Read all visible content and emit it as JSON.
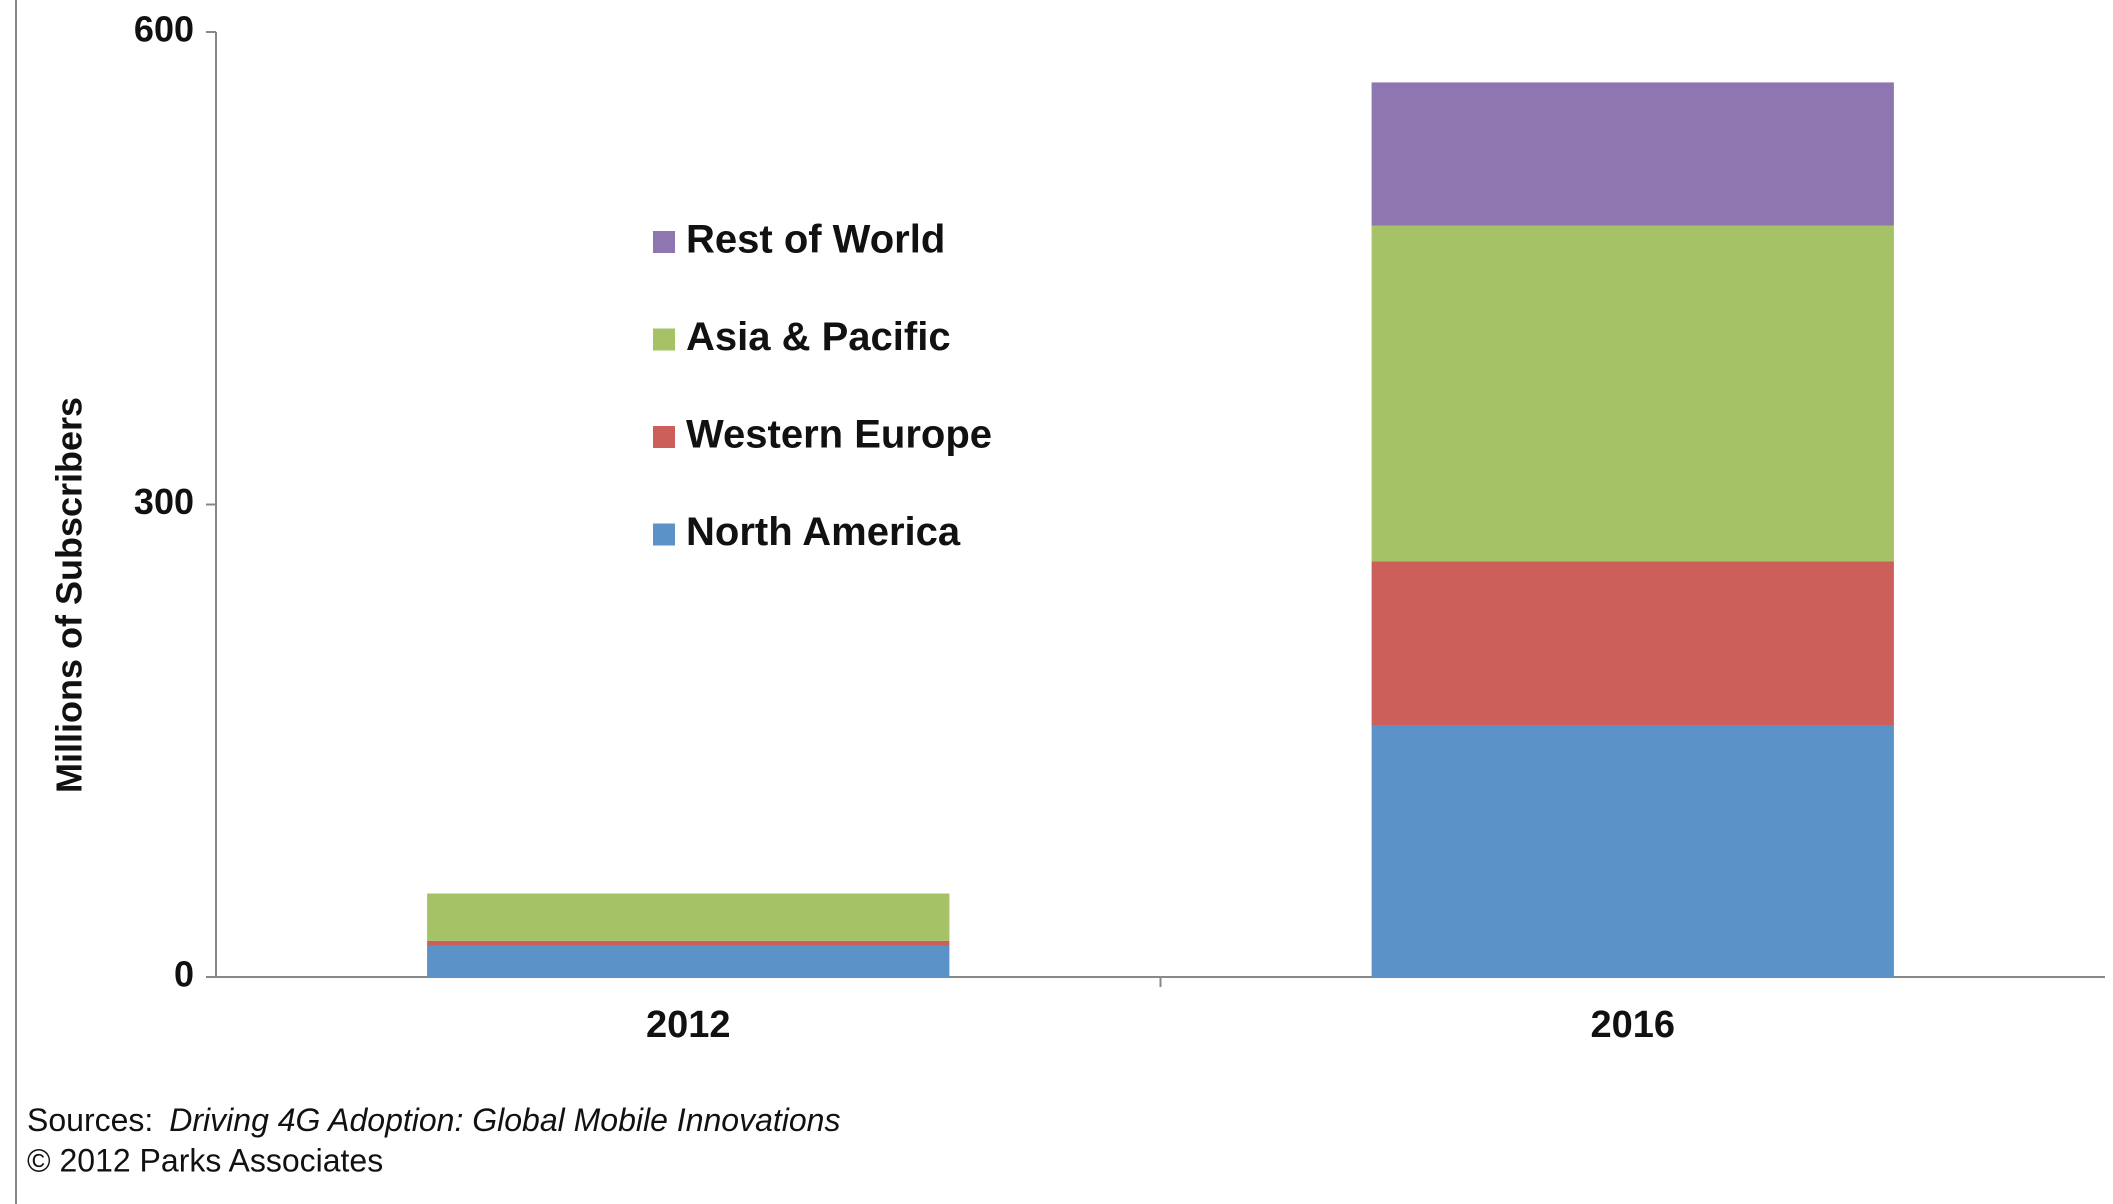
{
  "chart_data": {
    "type": "stacked-bar",
    "y_label": "Millions of Subscribers",
    "categories": [
      "2012",
      "2016"
    ],
    "series": [
      {
        "name": "North America",
        "color": "#5b93c9",
        "values": [
          20,
          160
        ]
      },
      {
        "name": "Western Europe",
        "color": "#cd5f5a",
        "values": [
          3,
          104
        ]
      },
      {
        "name": "Asia & Pacific",
        "color": "#a5c366",
        "values": [
          30,
          213
        ]
      },
      {
        "name": "Rest of World",
        "color": "#8e77b0",
        "values": [
          0,
          91
        ]
      }
    ],
    "ylim": [
      0,
      600
    ],
    "yticks": [
      0,
      300,
      600
    ],
    "grid": false,
    "legend": "inside-left",
    "source_label": "Sources:",
    "source_title": "Driving 4G Adoption: Global Mobile Innovations",
    "copyright": "© 2012 Parks Associates"
  }
}
